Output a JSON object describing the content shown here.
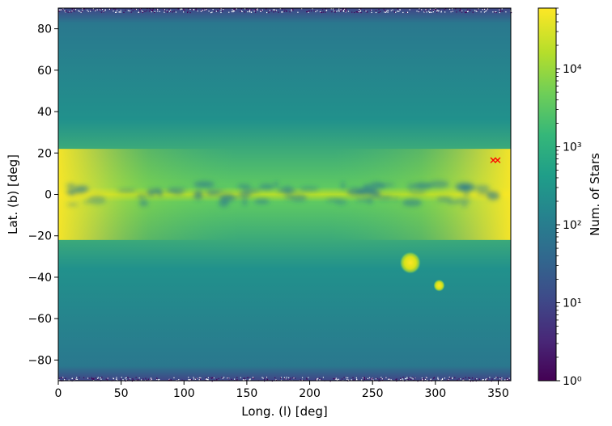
{
  "chart_data": {
    "type": "heatmap",
    "title": "",
    "xlabel": "Long. (l) [deg]",
    "ylabel": "Lat. (b) [deg]",
    "xlim": [
      0,
      360
    ],
    "ylim": [
      -90,
      90
    ],
    "xticks": [
      0,
      50,
      100,
      150,
      200,
      250,
      300,
      350
    ],
    "yticks": [
      -80,
      -60,
      -40,
      -20,
      0,
      20,
      40,
      60,
      80
    ],
    "grid": false,
    "colormap": "viridis",
    "colorbar": {
      "label": "Num. of Stars",
      "scale": "log",
      "range": [
        1,
        60000
      ],
      "tick_values": [
        1,
        10,
        100,
        1000,
        10000
      ],
      "tick_labels": [
        "10⁰",
        "10¹",
        "10²",
        "10³",
        "10⁴"
      ]
    },
    "features": [
      {
        "kind": "galactic-plane",
        "b_center": 0,
        "peak_count": 60000
      },
      {
        "kind": "bright-blob",
        "l": 280,
        "b": -33,
        "count": 30000
      },
      {
        "kind": "bright-blob",
        "l": 303,
        "b": -44,
        "count": 25000
      }
    ],
    "markers": [
      {
        "l": 346,
        "b": 16.5,
        "symbol": "x",
        "color": "#ff0000"
      },
      {
        "l": 349.5,
        "b": 16.5,
        "symbol": "x",
        "color": "#ff0000"
      }
    ]
  }
}
